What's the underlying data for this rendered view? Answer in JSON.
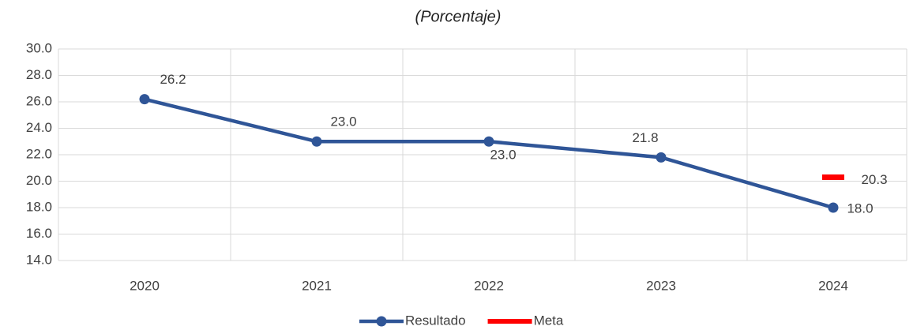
{
  "chart_data": {
    "type": "line",
    "title": "(Porcentaje)",
    "categories": [
      "2020",
      "2021",
      "2022",
      "2023",
      "2024"
    ],
    "series": [
      {
        "name": "Resultado",
        "color": "#2f5597",
        "values": [
          26.2,
          23.0,
          23.0,
          21.8,
          18.0
        ],
        "value_labels": [
          "26.2",
          "23.0",
          "23.0",
          "21.8",
          "18.0"
        ]
      },
      {
        "name": "Meta",
        "color": "#ff0000",
        "values": [
          null,
          null,
          null,
          null,
          20.3
        ],
        "value_labels": [
          null,
          null,
          null,
          null,
          "20.3"
        ]
      }
    ],
    "ylim": [
      14,
      30
    ],
    "yticks": [
      {
        "value": 14,
        "label": "14.0"
      },
      {
        "value": 16,
        "label": "16.0"
      },
      {
        "value": 18,
        "label": "18.0"
      },
      {
        "value": 20,
        "label": "20.0"
      },
      {
        "value": 22,
        "label": "22.0"
      },
      {
        "value": 24,
        "label": "24.0"
      },
      {
        "value": 26,
        "label": "26.0"
      },
      {
        "value": 28,
        "label": "28.0"
      },
      {
        "value": 30,
        "label": "30.0"
      }
    ],
    "grid": true,
    "legend": "bottom"
  }
}
